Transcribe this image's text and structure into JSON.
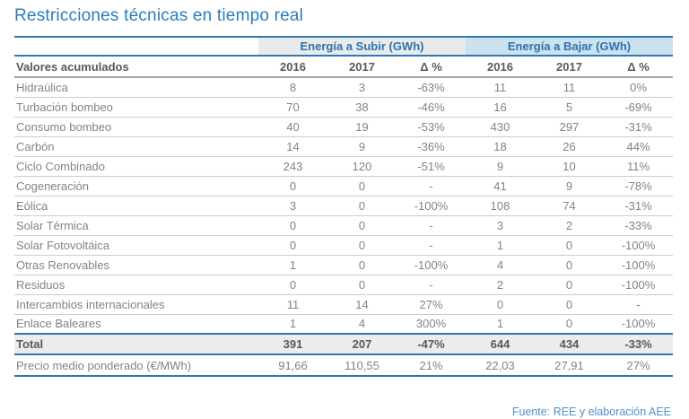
{
  "title": "Restricciones técnicas en tiempo real",
  "colors": {
    "accent_blue": "#3077b3",
    "title_blue": "#2d7cb9",
    "band_subir_bg": "#e9eaea",
    "band_bajar_bg": "#cbe2ef",
    "total_row_bg": "#ececee",
    "header_text": "#58595b",
    "body_text": "#828386",
    "footer_blue": "#4e92cc"
  },
  "table": {
    "group_headers": [
      {
        "label": "Energía a Subir (GWh)"
      },
      {
        "label": "Energía a Bajar (GWh)"
      }
    ],
    "column_headers": [
      "Valores acumulados",
      "2016",
      "2017",
      "Δ %",
      "2016",
      "2017",
      "Δ %"
    ],
    "rows": [
      {
        "cells": [
          "Hidraúlica",
          "8",
          "3",
          "-63%",
          "11",
          "11",
          "0%"
        ]
      },
      {
        "cells": [
          "Turbación bombeo",
          "70",
          "38",
          "-46%",
          "16",
          "5",
          "-69%"
        ]
      },
      {
        "cells": [
          "Consumo bombeo",
          "40",
          "19",
          "-53%",
          "430",
          "297",
          "-31%"
        ]
      },
      {
        "cells": [
          "Carbón",
          "14",
          "9",
          "-36%",
          "18",
          "26",
          "44%"
        ]
      },
      {
        "cells": [
          "Ciclo Combinado",
          "243",
          "120",
          "-51%",
          "9",
          "10",
          "11%"
        ]
      },
      {
        "cells": [
          "Cogeneración",
          "0",
          "0",
          "-",
          "41",
          "9",
          "-78%"
        ]
      },
      {
        "cells": [
          "Eólica",
          "3",
          "0",
          "-100%",
          "108",
          "74",
          "-31%"
        ]
      },
      {
        "cells": [
          "Solar Térmica",
          "0",
          "0",
          "-",
          "3",
          "2",
          "-33%"
        ]
      },
      {
        "cells": [
          "Solar Fotovoltáica",
          "0",
          "0",
          "-",
          "1",
          "0",
          "-100%"
        ]
      },
      {
        "cells": [
          "Otras Renovables",
          "1",
          "0",
          "-100%",
          "4",
          "0",
          "-100%"
        ]
      },
      {
        "cells": [
          "Residuos",
          "0",
          "0",
          "-",
          "2",
          "0",
          "-100%"
        ]
      },
      {
        "cells": [
          "Intercambios internacionales",
          "11",
          "14",
          "27%",
          "0",
          "0",
          "-"
        ]
      },
      {
        "cells": [
          "Enlace Baleares",
          "1",
          "4",
          "300%",
          "1",
          "0",
          "-100%"
        ]
      }
    ],
    "total_row": {
      "cells": [
        "Total",
        "391",
        "207",
        "-47%",
        "644",
        "434",
        "-33%"
      ]
    },
    "price_row": {
      "cells": [
        "Precio medio ponderado (€/MWh)",
        "91,66",
        "110,55",
        "21%",
        "22,03",
        "27,91",
        "27%"
      ]
    }
  },
  "footer": {
    "source": "Fuente: REE y elaboración AEE"
  },
  "chart_data": {
    "type": "table",
    "title": "Restricciones técnicas en tiempo real",
    "column_groups": [
      "Energía a Subir (GWh)",
      "Energía a Bajar (GWh)"
    ],
    "columns": [
      "Valores acumulados",
      "Subir 2016",
      "Subir 2017",
      "Subir Δ %",
      "Bajar 2016",
      "Bajar 2017",
      "Bajar Δ %"
    ],
    "rows": [
      [
        "Hidraúlica",
        8,
        3,
        "-63%",
        11,
        11,
        "0%"
      ],
      [
        "Turbación bombeo",
        70,
        38,
        "-46%",
        16,
        5,
        "-69%"
      ],
      [
        "Consumo bombeo",
        40,
        19,
        "-53%",
        430,
        297,
        "-31%"
      ],
      [
        "Carbón",
        14,
        9,
        "-36%",
        18,
        26,
        "44%"
      ],
      [
        "Ciclo Combinado",
        243,
        120,
        "-51%",
        9,
        10,
        "11%"
      ],
      [
        "Cogeneración",
        0,
        0,
        "-",
        41,
        9,
        "-78%"
      ],
      [
        "Eólica",
        3,
        0,
        "-100%",
        108,
        74,
        "-31%"
      ],
      [
        "Solar Térmica",
        0,
        0,
        "-",
        3,
        2,
        "-33%"
      ],
      [
        "Solar Fotovoltáica",
        0,
        0,
        "-",
        1,
        0,
        "-100%"
      ],
      [
        "Otras Renovables",
        1,
        0,
        "-100%",
        4,
        0,
        "-100%"
      ],
      [
        "Residuos",
        0,
        0,
        "-",
        2,
        0,
        "-100%"
      ],
      [
        "Intercambios internacionales",
        11,
        14,
        "27%",
        0,
        0,
        "-"
      ],
      [
        "Enlace Baleares",
        1,
        4,
        "300%",
        1,
        0,
        "-100%"
      ],
      [
        "Total",
        391,
        207,
        "-47%",
        644,
        434,
        "-33%"
      ],
      [
        "Precio medio ponderado (€/MWh)",
        "91,66",
        "110,55",
        "21%",
        "22,03",
        "27,91",
        "27%"
      ]
    ],
    "source": "Fuente: REE y elaboración AEE"
  }
}
